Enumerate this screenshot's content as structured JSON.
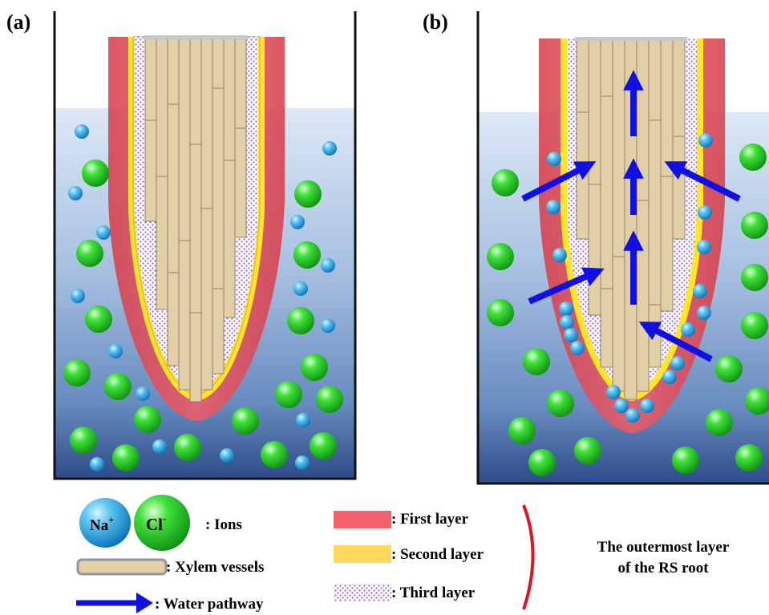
{
  "panels": [
    {
      "label": "(a)"
    },
    {
      "label": "(b)"
    }
  ],
  "legend": {
    "na_label": "Na",
    "na_sup": "+",
    "cl_label": "Cl",
    "cl_sup": "-",
    "ions_text": ": Ions",
    "xylem_text": ": Xylem vessels",
    "water_text": ": Water pathway",
    "first_layer_text": ": First layer",
    "second_layer_text": ": Second layer",
    "third_layer_text": ": Third layer",
    "bracket_line1": "The outermost layer",
    "bracket_line2": "of the RS root"
  },
  "colors": {
    "first_layer": "#e8414f",
    "second_layer": "#ffe629",
    "third_layer": "#9a5cd4",
    "xylem": "#e3cfa6",
    "na_ion": "#2aa5e2",
    "cl_ion": "#27c82a",
    "water_arrow": "#1010e6",
    "bracket": "#e0141e"
  },
  "icons": [
    "na-ion-icon",
    "cl-ion-icon",
    "xylem-vessel-icon",
    "water-arrow-icon",
    "layer-swatch-icon"
  ]
}
